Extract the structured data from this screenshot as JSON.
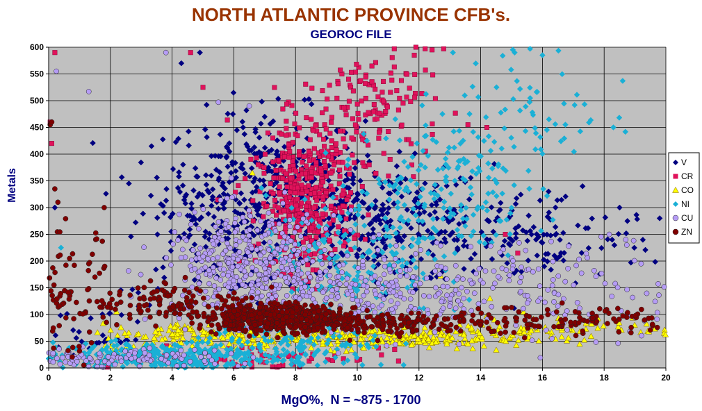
{
  "colors": {
    "title": "#993300",
    "subtitle": "#000080",
    "axis_label": "#000080",
    "plot_bg": "#c0c0c0"
  },
  "chart_data": {
    "type": "scatter",
    "title": "NORTH ATLANTIC PROVINCE CFB's.",
    "subtitle": "GEOROC FILE",
    "xlabel": "MgO%,  N = ~875 - 1700",
    "ylabel": "Metals",
    "xlim": [
      0,
      20
    ],
    "ylim": [
      0,
      600
    ],
    "xticks": [
      0,
      2,
      4,
      6,
      8,
      10,
      12,
      14,
      16,
      18,
      20
    ],
    "yticks": [
      0,
      50,
      100,
      150,
      200,
      250,
      300,
      350,
      400,
      450,
      500,
      550,
      600
    ],
    "grid": true,
    "legend_position": "right",
    "series": [
      {
        "name": "V",
        "marker": "diamond",
        "color": "#000080",
        "clusters": [
          {
            "cx": 7.0,
            "cy": 340,
            "sx": 1.6,
            "sy": 70,
            "n": 320
          },
          {
            "cx": 10.8,
            "cy": 270,
            "sx": 1.8,
            "sy": 55,
            "n": 260
          },
          {
            "cx": 15.5,
            "cy": 240,
            "sx": 2.2,
            "sy": 45,
            "n": 130
          },
          {
            "cx": 5.0,
            "cy": 250,
            "sx": 1.2,
            "sy": 70,
            "n": 110
          },
          {
            "cx": 1.5,
            "cy": 60,
            "sx": 1.0,
            "sy": 40,
            "n": 40
          }
        ],
        "points": [
          [
            0.2,
            300
          ],
          [
            2.6,
            345
          ],
          [
            4.3,
            570
          ],
          [
            4.9,
            590
          ],
          [
            6.3,
            450
          ],
          [
            7.0,
            470
          ],
          [
            18.5,
            300
          ],
          [
            19.8,
            280
          ],
          [
            17.3,
            340
          ],
          [
            16.2,
            330
          ]
        ]
      },
      {
        "name": "CR",
        "marker": "square",
        "color": "#e0125b",
        "clusters": [
          {
            "cx": 8.3,
            "cy": 305,
            "sx": 0.75,
            "sy": 60,
            "n": 340
          },
          {
            "cx": 10.6,
            "cy": 495,
            "sx": 1.1,
            "sy": 55,
            "n": 120
          },
          {
            "cx": 8.8,
            "cy": 400,
            "sx": 1.0,
            "sy": 50,
            "n": 100
          },
          {
            "cx": 7.0,
            "cy": 20,
            "sx": 2.0,
            "sy": 12,
            "n": 60
          }
        ],
        "points": [
          [
            0.2,
            590
          ],
          [
            0.1,
            420
          ],
          [
            0.05,
            460
          ],
          [
            4.6,
            590
          ],
          [
            5.0,
            525
          ],
          [
            11.2,
            597
          ],
          [
            11.9,
            600
          ],
          [
            12.2,
            597
          ],
          [
            12.8,
            597
          ],
          [
            14.2,
            450
          ],
          [
            15.2,
            215
          ],
          [
            14.8,
            250
          ]
        ]
      },
      {
        "name": "CO",
        "marker": "triangle",
        "color": "#ffff00",
        "clusters": [
          {
            "cx": 10.5,
            "cy": 55,
            "sx": 2.4,
            "sy": 10,
            "n": 240
          },
          {
            "cx": 5.0,
            "cy": 60,
            "sx": 1.7,
            "sy": 12,
            "n": 130
          },
          {
            "cx": 16.5,
            "cy": 75,
            "sx": 2.2,
            "sy": 12,
            "n": 70
          }
        ],
        "points": [
          [
            6.6,
            365
          ],
          [
            12.7,
            172
          ],
          [
            14.3,
            130
          ],
          [
            2.2,
            105
          ]
        ]
      },
      {
        "name": "NI",
        "marker": "diamond",
        "color": "#1ab0d6",
        "clusters": [
          {
            "cx": 3.5,
            "cy": 20,
            "sx": 2.2,
            "sy": 14,
            "n": 360
          },
          {
            "cx": 9.8,
            "cy": 210,
            "sx": 1.4,
            "sy": 60,
            "n": 180
          },
          {
            "cx": 12.8,
            "cy": 340,
            "sx": 1.3,
            "sy": 70,
            "n": 170
          },
          {
            "cx": 15.6,
            "cy": 480,
            "sx": 1.2,
            "sy": 65,
            "n": 60
          },
          {
            "cx": 7.8,
            "cy": 40,
            "sx": 1.6,
            "sy": 25,
            "n": 130
          }
        ],
        "points": [
          [
            15.6,
            597
          ],
          [
            15.1,
            590
          ],
          [
            16.0,
            585
          ],
          [
            13.1,
            590
          ],
          [
            18.6,
            537
          ],
          [
            18.3,
            450
          ],
          [
            0.4,
            225
          ]
        ]
      },
      {
        "name": "CU",
        "marker": "circle",
        "color": "#b59cf5",
        "clusters": [
          {
            "cx": 6.5,
            "cy": 190,
            "sx": 1.4,
            "sy": 50,
            "n": 380
          },
          {
            "cx": 10.3,
            "cy": 140,
            "sx": 2.2,
            "sy": 40,
            "n": 260
          },
          {
            "cx": 2.0,
            "cy": 15,
            "sx": 1.8,
            "sy": 10,
            "n": 130
          },
          {
            "cx": 16.5,
            "cy": 150,
            "sx": 2.4,
            "sy": 45,
            "n": 130
          }
        ],
        "points": [
          [
            0.25,
            555
          ],
          [
            3.8,
            590
          ],
          [
            1.3,
            517
          ],
          [
            5.5,
            497
          ],
          [
            6.5,
            490
          ],
          [
            18.7,
            240
          ],
          [
            19.2,
            195
          ]
        ]
      },
      {
        "name": "ZN",
        "marker": "circle",
        "color": "#800000",
        "clusters": [
          {
            "cx": 7.2,
            "cy": 95,
            "sx": 1.1,
            "sy": 13,
            "n": 520
          },
          {
            "cx": 10.5,
            "cy": 85,
            "sx": 2.2,
            "sy": 10,
            "n": 220
          },
          {
            "cx": 4.0,
            "cy": 120,
            "sx": 1.3,
            "sy": 18,
            "n": 110
          },
          {
            "cx": 17.0,
            "cy": 90,
            "sx": 2.0,
            "sy": 12,
            "n": 110
          },
          {
            "cx": 0.6,
            "cy": 130,
            "sx": 0.7,
            "sy": 60,
            "n": 80
          }
        ],
        "points": [
          [
            0.05,
            455
          ],
          [
            0.1,
            460
          ],
          [
            0.2,
            335
          ],
          [
            0.3,
            310
          ],
          [
            1.8,
            300
          ],
          [
            1.3,
            195
          ],
          [
            1.5,
            170
          ]
        ]
      }
    ]
  }
}
